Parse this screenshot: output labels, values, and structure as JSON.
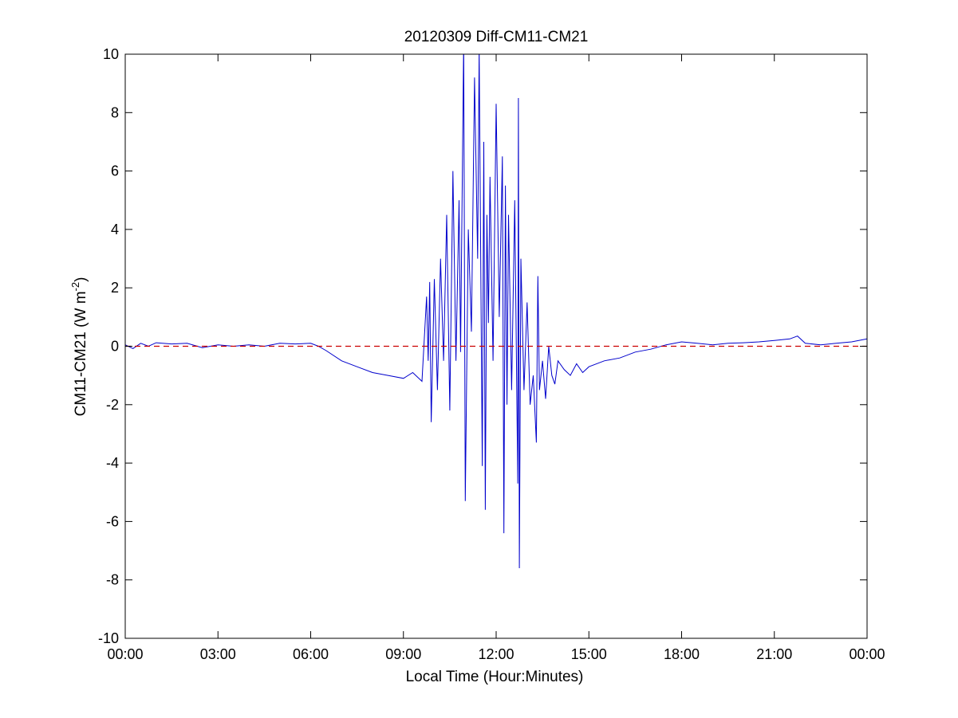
{
  "chart_data": {
    "type": "line",
    "title": "20120309 Diff-CM11-CM21",
    "xlabel": "Local Time (Hour:Minutes)",
    "ylabel": "CM11-CM21 (W m",
    "ylabel_sup": "-2",
    "ylabel_close": ")",
    "xlim": [
      0,
      24
    ],
    "ylim": [
      -10,
      10
    ],
    "xticks": [
      0,
      3,
      6,
      9,
      12,
      15,
      18,
      21,
      24
    ],
    "xtick_labels": [
      "00:00",
      "03:00",
      "06:00",
      "09:00",
      "12:00",
      "15:00",
      "18:00",
      "21:00",
      "00:00"
    ],
    "yticks": [
      -10,
      -8,
      -6,
      -4,
      -2,
      0,
      2,
      4,
      6,
      8,
      10
    ],
    "ytick_labels": [
      "-10",
      "-8",
      "-6",
      "-4",
      "-2",
      "0",
      "2",
      "4",
      "6",
      "8",
      "10"
    ],
    "grid": false,
    "series": [
      {
        "color": "#0000cc",
        "x": [
          0.0,
          0.25,
          0.5,
          0.75,
          1.0,
          1.5,
          2.0,
          2.5,
          3.0,
          3.5,
          4.0,
          4.5,
          5.0,
          5.5,
          6.0,
          6.25,
          6.5,
          7.0,
          7.5,
          8.0,
          8.5,
          9.0,
          9.3,
          9.6,
          9.75,
          9.8,
          9.85,
          9.9,
          10.0,
          10.1,
          10.2,
          10.3,
          10.4,
          10.5,
          10.6,
          10.7,
          10.8,
          10.85,
          10.95,
          11.0,
          11.1,
          11.2,
          11.3,
          11.4,
          11.45,
          11.55,
          11.6,
          11.65,
          11.7,
          11.75,
          11.8,
          11.9,
          12.0,
          12.1,
          12.2,
          12.25,
          12.3,
          12.35,
          12.4,
          12.5,
          12.6,
          12.7,
          12.72,
          12.75,
          12.8,
          12.9,
          13.0,
          13.1,
          13.2,
          13.3,
          13.35,
          13.4,
          13.5,
          13.6,
          13.7,
          13.8,
          13.9,
          14.0,
          14.2,
          14.4,
          14.6,
          14.8,
          15.0,
          15.5,
          16.0,
          16.5,
          17.0,
          17.5,
          18.0,
          18.5,
          19.0,
          19.5,
          20.0,
          20.5,
          21.0,
          21.5,
          21.75,
          22.0,
          22.5,
          23.0,
          23.5,
          24.0
        ],
        "y": [
          0.05,
          -0.08,
          0.1,
          0.0,
          0.12,
          0.08,
          0.1,
          -0.05,
          0.05,
          0.0,
          0.05,
          0.0,
          0.1,
          0.08,
          0.1,
          0.0,
          -0.15,
          -0.5,
          -0.7,
          -0.9,
          -1.0,
          -1.1,
          -0.9,
          -1.2,
          1.7,
          -0.5,
          2.2,
          -2.6,
          2.3,
          -1.5,
          3.0,
          -0.5,
          4.5,
          -2.2,
          6.0,
          -0.5,
          5.0,
          -0.2,
          10.5,
          -5.3,
          4.0,
          0.5,
          9.2,
          3.0,
          10.2,
          -4.1,
          7.0,
          -5.6,
          4.5,
          0.8,
          5.8,
          -0.5,
          8.3,
          1.0,
          6.5,
          -6.4,
          5.5,
          -2.0,
          4.5,
          -1.5,
          5.0,
          -4.7,
          8.5,
          -7.6,
          3.0,
          -1.5,
          1.5,
          -2.0,
          -1.0,
          -3.3,
          2.4,
          -1.5,
          -0.5,
          -1.8,
          0.0,
          -1.0,
          -1.3,
          -0.5,
          -0.8,
          -1.0,
          -0.6,
          -0.9,
          -0.7,
          -0.5,
          -0.4,
          -0.2,
          -0.1,
          0.05,
          0.15,
          0.1,
          0.05,
          0.1,
          0.12,
          0.15,
          0.2,
          0.25,
          0.35,
          0.1,
          0.05,
          0.1,
          0.15,
          0.25
        ]
      },
      {
        "color": "#cc0000",
        "style": "dashed",
        "x": [
          0,
          24
        ],
        "y": [
          0,
          0
        ]
      }
    ]
  }
}
